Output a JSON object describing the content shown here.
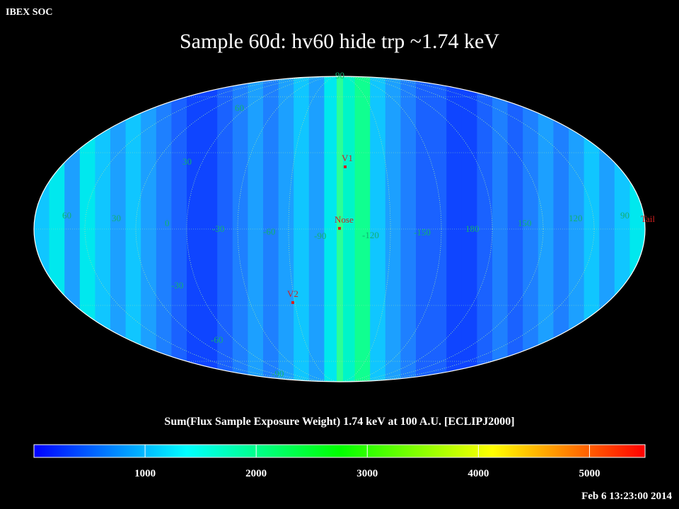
{
  "header": {
    "org_label": "IBEX SOC",
    "title": "Sample 60d: hv60 hide trp ~1.74 keV"
  },
  "map": {
    "projection": "Mollweide (Hammer-Aitoff style all-sky)",
    "latitude_labels": [
      "90",
      "60",
      "30",
      "-30",
      "-60",
      "-90"
    ],
    "longitude_labels": [
      "60",
      "30",
      "0",
      "-30",
      "-60",
      "-90",
      "-120",
      "-150",
      "180",
      "150",
      "120",
      "90"
    ],
    "markers": [
      {
        "label": "V1"
      },
      {
        "label": "Nose"
      },
      {
        "label": "V2"
      },
      {
        "label": "Tail"
      }
    ]
  },
  "colorbar": {
    "title": "Sum(Flux Sample Exposure Weight)  1.74 keV at 100 A.U. [ECLIPJ2000]",
    "tick_labels": [
      "1000",
      "2000",
      "3000",
      "4000",
      "5000"
    ],
    "range": [
      0,
      5500
    ],
    "colors": [
      "#0000ff",
      "#0080ff",
      "#00ffff",
      "#00ff80",
      "#00ff00",
      "#80ff00",
      "#ffff00",
      "#ff8000",
      "#ff0000"
    ]
  },
  "footer": {
    "timestamp": "Feb  6 13:23:00 2014"
  }
}
